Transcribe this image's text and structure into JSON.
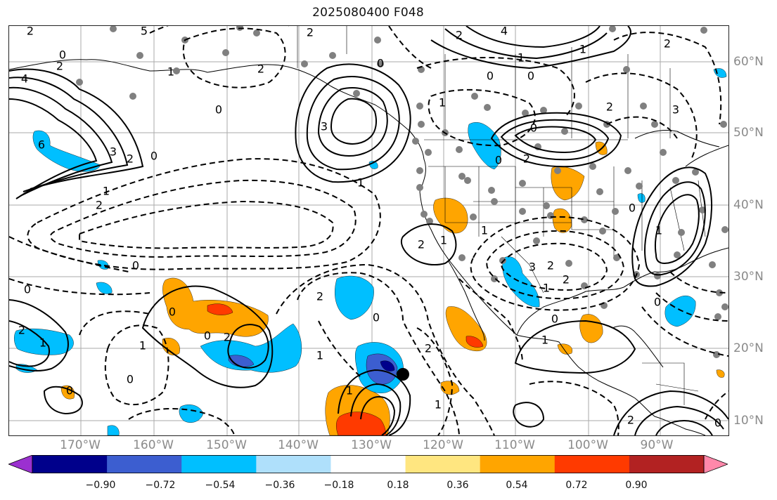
{
  "title": "2025080400 F048",
  "lon_labels": [
    "170°W",
    "160°W",
    "150°W",
    "140°W",
    "130°W",
    "120°W",
    "110°W",
    "100°W",
    "90°W"
  ],
  "lat_labels": [
    "60°N",
    "50°N",
    "40°N",
    "30°N",
    "20°N",
    "10°N"
  ],
  "colorbar": {
    "ticks": [
      "−0.90",
      "−0.72",
      "−0.54",
      "−0.36",
      "−0.18",
      "0.18",
      "0.36",
      "0.54",
      "0.72",
      "0.90"
    ],
    "colors": [
      "#9b30d0",
      "#00008b",
      "#3c5ed0",
      "#00bfff",
      "#afe0fb",
      "#ffffff",
      "#ffe680",
      "#ffa500",
      "#ff3a00",
      "#b22222",
      "#ff88aa"
    ]
  },
  "contour_labels": [
    "2",
    "5",
    "4",
    "0",
    "2",
    "4",
    "0",
    "2",
    "6",
    "3",
    "2",
    "1",
    "2",
    "0",
    "3",
    "0",
    "1",
    "2",
    "0",
    "2",
    "1",
    "1",
    "2",
    "3",
    "0",
    "1",
    "0",
    "2",
    "0",
    "2",
    "1",
    "0",
    "1",
    "2",
    "1",
    "0",
    "1",
    "2",
    "1",
    "0",
    "2",
    "0",
    "1",
    "0",
    "2",
    "3",
    "2",
    "0",
    "1",
    "0",
    "1",
    "2",
    "0",
    "0",
    "1",
    "1",
    "2",
    "1",
    "0",
    "2",
    "0"
  ],
  "colors": {
    "station_dot": "#808080",
    "contour": "#000000",
    "grid": "#aaaaaa",
    "axis_label": "#8a8a8a"
  }
}
